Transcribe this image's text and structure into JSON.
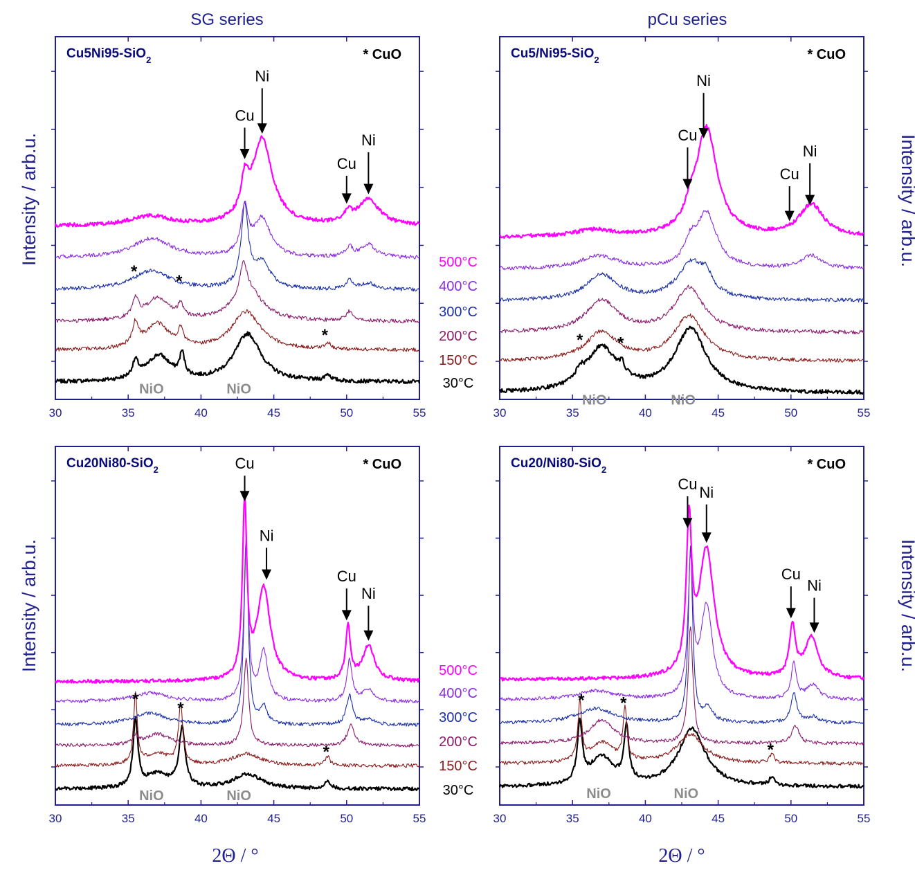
{
  "columns": {
    "left_title": "SG series",
    "right_title": "pCu series"
  },
  "axes": {
    "xlabel": "2Θ / °",
    "ylabel": "Intensity / arb.u.",
    "xticks": [
      "30",
      "35",
      "40",
      "45",
      "50",
      "55"
    ]
  },
  "temperature_labels": [
    {
      "text": "500°C",
      "color": "#ff00ff"
    },
    {
      "text": "400°C",
      "color": "#8a2be2"
    },
    {
      "text": "300°C",
      "color": "#1a2ea8"
    },
    {
      "text": "200°C",
      "color": "#8b1a6b"
    },
    {
      "text": "150°C",
      "color": "#8b1a1a"
    },
    {
      "text": "30°C",
      "color": "#000000"
    }
  ],
  "chart_data": [
    {
      "type": "line",
      "title": "Cu5Ni95-SiO2",
      "title_main": "Cu5Ni95-SiO",
      "title_sub": "2",
      "legend_note": "* CuO",
      "xlabel": "2Θ / °",
      "ylabel": "Intensity / arb.u.",
      "xlim": [
        30,
        55
      ],
      "series": [
        {
          "name": "30°C",
          "color": "#000000",
          "baseline": 0.0,
          "peaks": [
            [
              35.5,
              0.05,
              0.25
            ],
            [
              37.1,
              0.08,
              1.0
            ],
            [
              38.7,
              0.07,
              0.2
            ],
            [
              43.2,
              0.15,
              1.1
            ],
            [
              48.7,
              0.02,
              0.25
            ]
          ]
        },
        {
          "name": "150°C",
          "color": "#8b1a1a",
          "baseline": 0.1,
          "peaks": [
            [
              35.5,
              0.07,
              0.25
            ],
            [
              37.0,
              0.08,
              1.0
            ],
            [
              38.6,
              0.05,
              0.2
            ],
            [
              43.1,
              0.12,
              1.2
            ],
            [
              48.7,
              0.02,
              0.25
            ]
          ]
        },
        {
          "name": "200°C",
          "color": "#8b1a6b",
          "baseline": 0.19,
          "peaks": [
            [
              35.5,
              0.06,
              0.25
            ],
            [
              37.0,
              0.07,
              1.0
            ],
            [
              38.6,
              0.04,
              0.2
            ],
            [
              42.9,
              0.09,
              0.3
            ],
            [
              43.2,
              0.1,
              1.2
            ],
            [
              50.2,
              0.03,
              0.3
            ]
          ]
        },
        {
          "name": "300°C",
          "color": "#1a2ea8",
          "baseline": 0.29,
          "peaks": [
            [
              36.6,
              0.06,
              1.5
            ],
            [
              43.0,
              0.25,
              0.3
            ],
            [
              44.2,
              0.08,
              0.7
            ],
            [
              50.2,
              0.03,
              0.3
            ],
            [
              51.5,
              0.02,
              0.5
            ]
          ]
        },
        {
          "name": "400°C",
          "color": "#8a2be2",
          "baseline": 0.39,
          "peaks": [
            [
              36.6,
              0.06,
              1.6
            ],
            [
              43.0,
              0.14,
              0.3
            ],
            [
              44.2,
              0.12,
              0.7
            ],
            [
              50.2,
              0.03,
              0.3
            ],
            [
              51.5,
              0.04,
              0.6
            ]
          ]
        },
        {
          "name": "500°C",
          "color": "#ff00ff",
          "baseline": 0.49,
          "peaks": [
            [
              36.5,
              0.03,
              1.6
            ],
            [
              43.0,
              0.1,
              0.3
            ],
            [
              44.2,
              0.27,
              0.85
            ],
            [
              50.1,
              0.03,
              0.3
            ],
            [
              51.5,
              0.08,
              0.9
            ]
          ]
        }
      ],
      "annotations": [
        {
          "label": "Cu",
          "x": 43.0,
          "peak_y": 0.7,
          "arrow_len": 0.18
        },
        {
          "label": "Ni",
          "x": 44.2,
          "peak_y": 0.78,
          "arrow_len": 0.26
        },
        {
          "label": "Cu",
          "x": 50.0,
          "peak_y": 0.56,
          "arrow_len": 0.16
        },
        {
          "label": "Ni",
          "x": 51.5,
          "peak_y": 0.59,
          "arrow_len": 0.24
        }
      ],
      "markers": [
        {
          "label": "*",
          "x": 35.4,
          "y": 0.33
        },
        {
          "label": "*",
          "x": 38.5,
          "y": 0.3
        },
        {
          "label": "*",
          "x": 48.5,
          "y": 0.13
        }
      ],
      "phase_labels": [
        {
          "label": "NiO",
          "x": 36.6,
          "y": -0.01
        },
        {
          "label": "NiO",
          "x": 42.6,
          "y": -0.01
        }
      ]
    },
    {
      "type": "line",
      "title": "Cu5/Ni95-SiO2",
      "title_main": "Cu5/Ni95-SiO",
      "title_sub": "2",
      "legend_note": "* CuO",
      "xlabel": "2Θ / °",
      "ylabel": "Intensity / arb.u.",
      "xlim": [
        30,
        55
      ],
      "series": [
        {
          "name": "30°C",
          "color": "#000000",
          "baseline": 0.0,
          "peaks": [
            [
              35.5,
              0.03,
              0.3
            ],
            [
              37.0,
              0.14,
              1.3
            ],
            [
              38.4,
              0.03,
              0.2
            ],
            [
              43.1,
              0.2,
              1.3
            ]
          ]
        },
        {
          "name": "150°C",
          "color": "#8b1a1a",
          "baseline": 0.1,
          "peaks": [
            [
              37.0,
              0.09,
              1.3
            ],
            [
              43.0,
              0.14,
              1.3
            ]
          ]
        },
        {
          "name": "200°C",
          "color": "#8b1a6b",
          "baseline": 0.19,
          "peaks": [
            [
              37.0,
              0.1,
              1.3
            ],
            [
              43.0,
              0.14,
              1.2
            ]
          ]
        },
        {
          "name": "300°C",
          "color": "#1a2ea8",
          "baseline": 0.29,
          "peaks": [
            [
              37.0,
              0.08,
              1.3
            ],
            [
              43.2,
              0.12,
              1.2
            ],
            [
              44.2,
              0.04,
              0.4
            ]
          ]
        },
        {
          "name": "400°C",
          "color": "#8a2be2",
          "baseline": 0.39,
          "peaks": [
            [
              36.8,
              0.04,
              1.5
            ],
            [
              43.1,
              0.06,
              0.5
            ],
            [
              44.2,
              0.17,
              0.85
            ],
            [
              51.4,
              0.04,
              0.8
            ]
          ]
        },
        {
          "name": "500°C",
          "color": "#ff00ff",
          "baseline": 0.49,
          "peaks": [
            [
              36.5,
              0.02,
              1.6
            ],
            [
              43.1,
              0.04,
              0.4
            ],
            [
              44.2,
              0.34,
              0.9
            ],
            [
              51.4,
              0.1,
              1.0
            ]
          ]
        }
      ],
      "annotations": [
        {
          "label": "Cu",
          "x": 42.9,
          "peak_y": 0.64,
          "arrow_len": 0.24
        },
        {
          "label": "Ni",
          "x": 44.0,
          "peak_y": 0.8,
          "arrow_len": 0.26
        },
        {
          "label": "Cu",
          "x": 49.9,
          "peak_y": 0.54,
          "arrow_len": 0.2
        },
        {
          "label": "Ni",
          "x": 51.3,
          "peak_y": 0.59,
          "arrow_len": 0.24
        }
      ],
      "markers": [
        {
          "label": "*",
          "x": 35.5,
          "y": 0.15
        },
        {
          "label": "*",
          "x": 38.3,
          "y": 0.14
        }
      ],
      "phase_labels": [
        {
          "label": "NiO",
          "x": 36.5,
          "y": -0.01
        },
        {
          "label": "NiO",
          "x": 42.6,
          "y": -0.01
        }
      ]
    },
    {
      "type": "line",
      "title": "Cu20Ni80-SiO2",
      "title_main": "Cu20Ni80-SiO",
      "title_sub": "2",
      "legend_note": "* CuO",
      "xlabel": "2Θ / °",
      "ylabel": "Intensity / arb.u.",
      "xlim": [
        30,
        55
      ],
      "series": [
        {
          "name": "30°C",
          "color": "#000000",
          "baseline": 0.0,
          "peaks": [
            [
              35.5,
              0.23,
              0.2
            ],
            [
              37.0,
              0.05,
              1.0
            ],
            [
              38.7,
              0.2,
              0.25
            ],
            [
              43.2,
              0.05,
              1.2
            ],
            [
              48.7,
              0.03,
              0.2
            ]
          ]
        },
        {
          "name": "150°C",
          "color": "#8b1a1a",
          "baseline": 0.08,
          "peaks": [
            [
              35.5,
              0.24,
              0.15
            ],
            [
              37.0,
              0.04,
              1.0
            ],
            [
              38.6,
              0.2,
              0.18
            ],
            [
              43.1,
              0.04,
              1.2
            ],
            [
              48.7,
              0.03,
              0.2
            ]
          ]
        },
        {
          "name": "200°C",
          "color": "#8b1a6b",
          "baseline": 0.15,
          "peaks": [
            [
              35.5,
              0.03,
              0.2
            ],
            [
              37.0,
              0.04,
              1.0
            ],
            [
              43.1,
              0.3,
              0.2
            ],
            [
              50.3,
              0.07,
              0.3
            ]
          ]
        },
        {
          "name": "300°C",
          "color": "#1a2ea8",
          "baseline": 0.22,
          "peaks": [
            [
              36.5,
              0.04,
              1.5
            ],
            [
              43.1,
              0.62,
              0.18
            ],
            [
              44.3,
              0.06,
              0.3
            ],
            [
              50.2,
              0.1,
              0.25
            ],
            [
              51.5,
              0.02,
              0.5
            ]
          ]
        },
        {
          "name": "400°C",
          "color": "#8a2be2",
          "baseline": 0.3,
          "peaks": [
            [
              36.5,
              0.03,
              1.5
            ],
            [
              43.1,
              0.55,
              0.18
            ],
            [
              44.3,
              0.17,
              0.35
            ],
            [
              50.2,
              0.14,
              0.22
            ],
            [
              51.5,
              0.04,
              0.5
            ]
          ]
        },
        {
          "name": "500°C",
          "color": "#ff00ff",
          "baseline": 0.37,
          "peaks": [
            [
              43.0,
              0.6,
              0.18
            ],
            [
              44.3,
              0.32,
              0.55
            ],
            [
              50.1,
              0.18,
              0.2
            ],
            [
              51.5,
              0.12,
              0.5
            ]
          ]
        }
      ],
      "annotations": [
        {
          "label": "Cu",
          "x": 43.0,
          "peak_y": 0.99,
          "arrow_len": 0.16
        },
        {
          "label": "Ni",
          "x": 44.5,
          "peak_y": 0.72,
          "arrow_len": 0.2
        },
        {
          "label": "Cu",
          "x": 50.0,
          "peak_y": 0.58,
          "arrow_len": 0.2
        },
        {
          "label": "Ni",
          "x": 51.5,
          "peak_y": 0.51,
          "arrow_len": 0.22
        }
      ],
      "markers": [
        {
          "label": "*",
          "x": 35.5,
          "y": 0.29
        },
        {
          "label": "*",
          "x": 38.6,
          "y": 0.26
        },
        {
          "label": "*",
          "x": 48.6,
          "y": 0.11
        }
      ],
      "phase_labels": [
        {
          "label": "NiO",
          "x": 36.6,
          "y": -0.01
        },
        {
          "label": "NiO",
          "x": 42.6,
          "y": -0.01
        }
      ]
    },
    {
      "type": "line",
      "title": "Cu20/Ni80-SiO2",
      "title_main": "Cu20/Ni80-SiO",
      "title_sub": "2",
      "legend_note": "* CuO",
      "xlabel": "2Θ / °",
      "ylabel": "Intensity / arb.u.",
      "xlim": [
        30,
        55
      ],
      "series": [
        {
          "name": "30°C",
          "color": "#000000",
          "baseline": 0.0,
          "peaks": [
            [
              35.5,
              0.2,
              0.2
            ],
            [
              37.0,
              0.1,
              1.0
            ],
            [
              38.7,
              0.18,
              0.2
            ],
            [
              43.2,
              0.2,
              1.1
            ],
            [
              48.7,
              0.03,
              0.2
            ]
          ]
        },
        {
          "name": "150°C",
          "color": "#8b1a1a",
          "baseline": 0.08,
          "peaks": [
            [
              35.5,
              0.2,
              0.15
            ],
            [
              37.0,
              0.07,
              1.0
            ],
            [
              38.6,
              0.18,
              0.15
            ],
            [
              43.1,
              0.1,
              1.1
            ],
            [
              48.7,
              0.03,
              0.2
            ]
          ]
        },
        {
          "name": "200°C",
          "color": "#8b1a6b",
          "baseline": 0.15,
          "peaks": [
            [
              37.0,
              0.08,
              1.0
            ],
            [
              43.1,
              0.4,
              0.2
            ],
            [
              50.3,
              0.06,
              0.3
            ]
          ]
        },
        {
          "name": "300°C",
          "color": "#1a2ea8",
          "baseline": 0.22,
          "peaks": [
            [
              36.6,
              0.05,
              1.5
            ],
            [
              43.1,
              0.6,
              0.18
            ],
            [
              44.3,
              0.05,
              0.4
            ],
            [
              50.2,
              0.1,
              0.25
            ],
            [
              51.5,
              0.02,
              0.5
            ]
          ]
        },
        {
          "name": "400°C",
          "color": "#8a2be2",
          "baseline": 0.3,
          "peaks": [
            [
              36.6,
              0.03,
              1.5
            ],
            [
              43.1,
              0.45,
              0.2
            ],
            [
              44.2,
              0.32,
              0.5
            ],
            [
              50.2,
              0.12,
              0.22
            ],
            [
              51.5,
              0.05,
              0.5
            ]
          ]
        },
        {
          "name": "500°C",
          "color": "#ff00ff",
          "baseline": 0.37,
          "peaks": [
            [
              43.0,
              0.5,
              0.22
            ],
            [
              44.2,
              0.44,
              0.65
            ],
            [
              50.1,
              0.17,
              0.25
            ],
            [
              51.4,
              0.14,
              0.55
            ]
          ]
        }
      ],
      "annotations": [
        {
          "label": "Cu",
          "x": 42.9,
          "peak_y": 0.89,
          "arrow_len": 0.2
        },
        {
          "label": "Ni",
          "x": 44.2,
          "peak_y": 0.84,
          "arrow_len": 0.24
        },
        {
          "label": "Cu",
          "x": 50.0,
          "peak_y": 0.58,
          "arrow_len": 0.2
        },
        {
          "label": "Ni",
          "x": 51.6,
          "peak_y": 0.53,
          "arrow_len": 0.22
        }
      ],
      "markers": [
        {
          "label": "*",
          "x": 35.6,
          "y": 0.28
        },
        {
          "label": "*",
          "x": 38.5,
          "y": 0.27
        },
        {
          "label": "*",
          "x": 48.6,
          "y": 0.11
        }
      ],
      "phase_labels": [
        {
          "label": "NiO",
          "x": 36.8,
          "y": -0.01
        },
        {
          "label": "NiO",
          "x": 42.8,
          "y": -0.01
        }
      ]
    }
  ]
}
